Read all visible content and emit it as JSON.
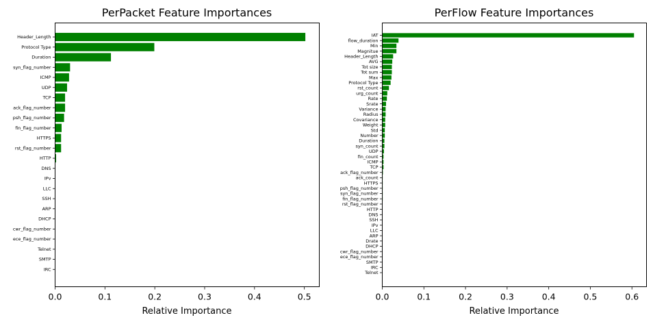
{
  "chart_data": [
    {
      "type": "bar",
      "orientation": "horizontal",
      "title": "PerPacket Feature Importances",
      "xlabel": "Relative Importance",
      "ylabel": "",
      "xlim": [
        0,
        0.53
      ],
      "xticks": [
        "0.0",
        "0.1",
        "0.2",
        "0.3",
        "0.4",
        "0.5"
      ],
      "bar_color": "#008000",
      "grid": false,
      "categories": [
        "Header_Length",
        "Protocol Type",
        "Duration",
        "syn_flag_number",
        "ICMP",
        "UDP",
        "TCP",
        "ack_flag_number",
        "psh_flag_number",
        "fin_flag_number",
        "HTTPS",
        "rst_flag_number",
        "HTTP",
        "DNS",
        "IPv",
        "LLC",
        "SSH",
        "ARP",
        "DHCP",
        "cwr_flag_number",
        "ece_flag_number",
        "Telnet",
        "SMTP",
        "IRC"
      ],
      "values": [
        0.502,
        0.199,
        0.112,
        0.03,
        0.028,
        0.024,
        0.02,
        0.02,
        0.018,
        0.013,
        0.012,
        0.012,
        0.002,
        0.0005,
        0.0003,
        0.0002,
        0.0002,
        0.0002,
        0.0001,
        0.0001,
        0.0001,
        0.0,
        0.0,
        0.0
      ]
    },
    {
      "type": "bar",
      "orientation": "horizontal",
      "title": "PerFlow Feature Importances",
      "xlabel": "Relative Importance",
      "ylabel": "",
      "xlim": [
        0,
        0.635
      ],
      "xticks": [
        "0.0",
        "0.1",
        "0.2",
        "0.3",
        "0.4",
        "0.5",
        "0.6"
      ],
      "bar_color": "#008000",
      "grid": false,
      "categories": [
        "IAT",
        "flow_duration",
        "Min",
        "Magnitue",
        "Header_Length",
        "AVG",
        "Tot size",
        "Tot sum",
        "Max",
        "Protocol Type",
        "rst_count",
        "urg_count",
        "Rate",
        "Srate",
        "Variance",
        "Radius",
        "Covariance",
        "Weight",
        "Std",
        "Number",
        "Duration",
        "syn_count",
        "UDP",
        "fin_count",
        "ICMP",
        "TCP",
        "ack_flag_number",
        "ack_count",
        "HTTPS",
        "psh_flag_number",
        "syn_flag_number",
        "fin_flag_number",
        "rst_flag_number",
        "HTTP",
        "DNS",
        "SSH",
        "IPv",
        "LLC",
        "ARP",
        "Drate",
        "DHCP",
        "cwr_flag_number",
        "ece_flag_number",
        "SMTP",
        "IRC",
        "Telnet"
      ],
      "values": [
        0.605,
        0.039,
        0.034,
        0.034,
        0.026,
        0.024,
        0.023,
        0.023,
        0.022,
        0.02,
        0.016,
        0.012,
        0.011,
        0.009,
        0.008,
        0.008,
        0.007,
        0.007,
        0.006,
        0.006,
        0.005,
        0.005,
        0.004,
        0.003,
        0.003,
        0.003,
        0.0015,
        0.001,
        0.001,
        0.001,
        0.001,
        0.001,
        0.0008,
        0.0005,
        0.0005,
        0.0004,
        0.0004,
        0.0003,
        0.0003,
        0.0003,
        0.0002,
        0.0001,
        0.0001,
        0.0001,
        0.0,
        0.0
      ]
    }
  ]
}
